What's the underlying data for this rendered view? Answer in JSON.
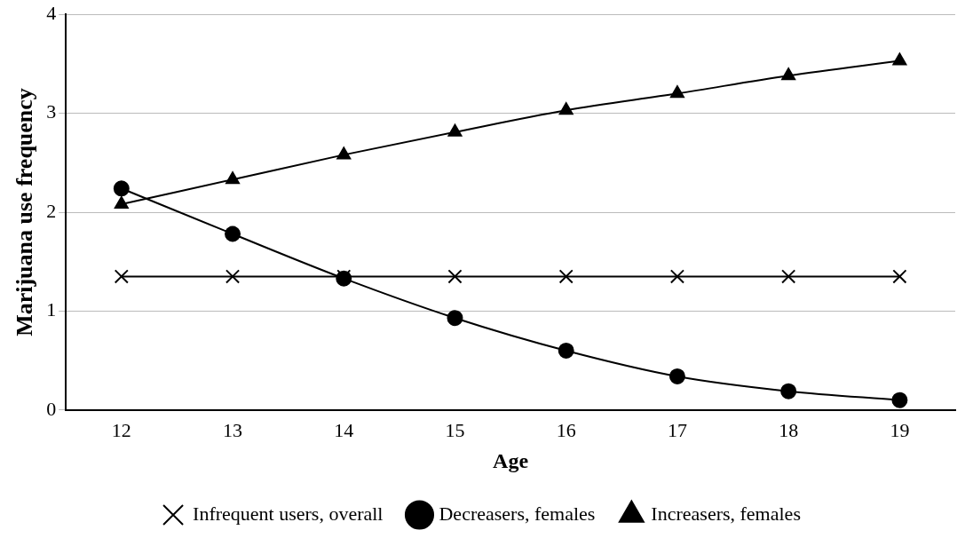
{
  "chart_data": {
    "type": "line",
    "xlabel": "Age",
    "ylabel": "Marijuana use frequency",
    "categories": [
      "12",
      "13",
      "14",
      "15",
      "16",
      "17",
      "18",
      "19"
    ],
    "ylim": [
      0,
      4
    ],
    "yticks": [
      0,
      1,
      2,
      3,
      4
    ],
    "grid": "y",
    "legend": "bottom",
    "series": [
      {
        "name": "Infrequent users, overall",
        "color": "#000000",
        "marker": "cross",
        "values": [
          1.35,
          1.35,
          1.35,
          1.35,
          1.35,
          1.35,
          1.35,
          1.35
        ]
      },
      {
        "name": "Decreasers, females",
        "color": "#000000",
        "marker": "circle",
        "values": [
          2.24,
          1.78,
          1.33,
          0.93,
          0.6,
          0.34,
          0.19,
          0.1
        ]
      },
      {
        "name": "Increasers, females",
        "color": "#000000",
        "marker": "triangle",
        "values": [
          2.08,
          2.33,
          2.58,
          2.81,
          3.03,
          3.2,
          3.38,
          3.53
        ]
      }
    ]
  }
}
